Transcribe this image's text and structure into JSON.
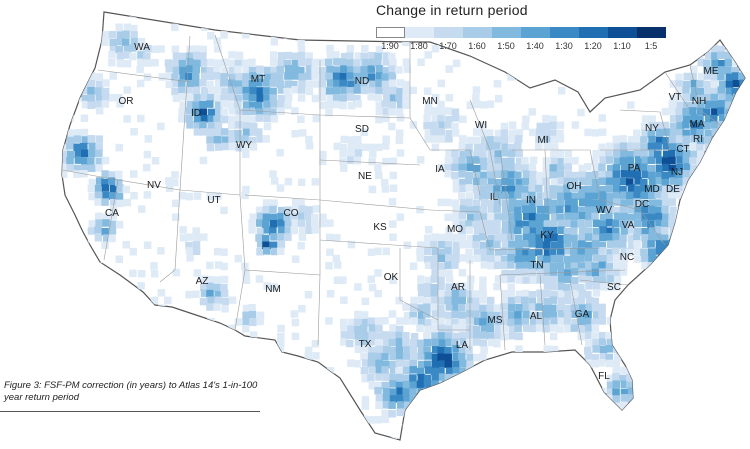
{
  "legend": {
    "title": "Change in return period",
    "bins": [
      {
        "label": "1:90",
        "color": "#ffffff"
      },
      {
        "label": "1:80",
        "color": "#deebf7"
      },
      {
        "label": "1:70",
        "color": "#c6dbef"
      },
      {
        "label": "1:60",
        "color": "#a9cde8"
      },
      {
        "label": "1:50",
        "color": "#82b9de"
      },
      {
        "label": "1:40",
        "color": "#5ba3d3"
      },
      {
        "label": "1:30",
        "color": "#3b89c4"
      },
      {
        "label": "1:20",
        "color": "#1f6fb2"
      },
      {
        "label": "1:10",
        "color": "#0f4f96"
      },
      {
        "label": "1:5",
        "color": "#08306b"
      }
    ]
  },
  "caption": "Figure 3: FSF-PM correction (in years) to Atlas 14's 1-in-100 year return period",
  "states": [
    "WA",
    "OR",
    "CA",
    "NV",
    "ID",
    "MT",
    "WY",
    "UT",
    "AZ",
    "NM",
    "CO",
    "ND",
    "SD",
    "NE",
    "KS",
    "OK",
    "TX",
    "MN",
    "IA",
    "MO",
    "AR",
    "LA",
    "WI",
    "IL",
    "MI",
    "IN",
    "OH",
    "KY",
    "TN",
    "MS",
    "AL",
    "GA",
    "FL",
    "SC",
    "NC",
    "VA",
    "WV",
    "PA",
    "NY",
    "VT",
    "NH",
    "ME",
    "MA",
    "RI",
    "CT",
    "NJ",
    "DE",
    "MD",
    "DC"
  ]
}
